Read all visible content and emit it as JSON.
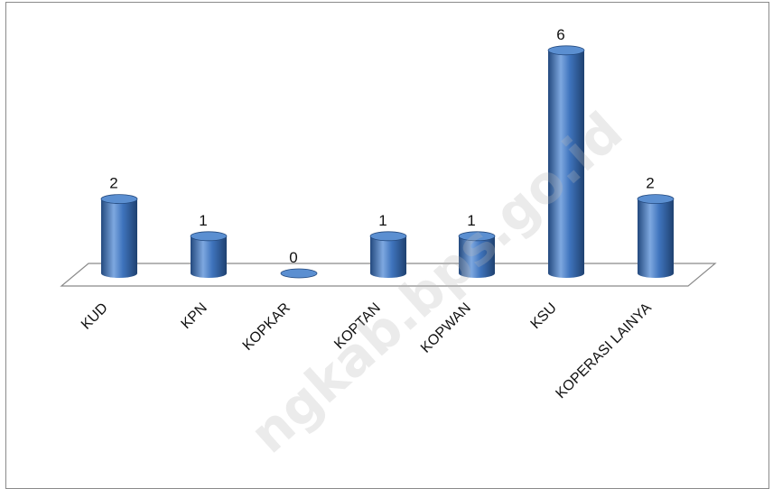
{
  "chart_data": {
    "type": "bar",
    "style": "3d-cylinder",
    "categories": [
      "KUD",
      "KPN",
      "KOPKAR",
      "KOPTAN",
      "KOPWAN",
      "KSU",
      "KOPERASI LAINYA"
    ],
    "values": [
      2,
      1,
      0,
      1,
      1,
      6,
      2
    ],
    "data_labels": [
      "2",
      "1",
      "0",
      "1",
      "1",
      "6",
      "2"
    ],
    "title": "",
    "xlabel": "",
    "ylabel": "",
    "ylim": [
      0,
      6
    ],
    "grid": false,
    "legend": "none",
    "colors": {
      "bar_fill": "#3f74bd",
      "bar_dark": "#23497e",
      "bar_light": "#7ea8e0",
      "bar_top": "#5b8fd1",
      "floor": "#ffffff",
      "floor_stroke": "#8a8a8a"
    }
  },
  "watermark": "ngkab.bps.go.id"
}
